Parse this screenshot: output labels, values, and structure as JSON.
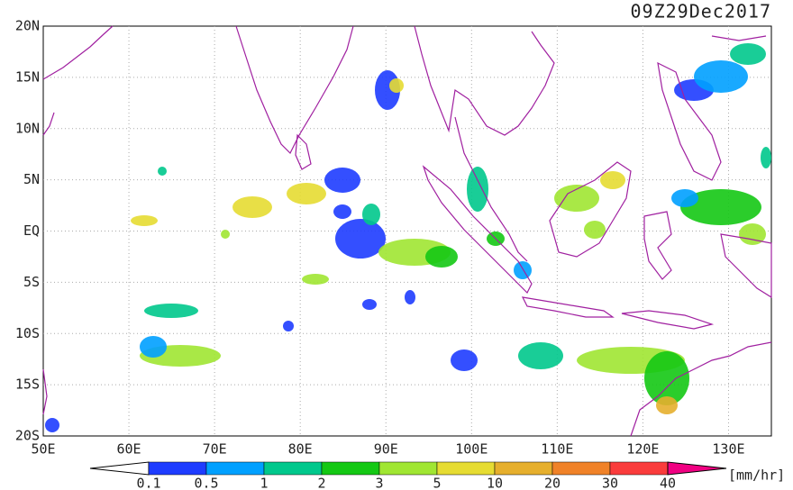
{
  "header": {
    "timestamp": "09Z29Dec2017"
  },
  "map": {
    "lat_labels": [
      "20N",
      "15N",
      "10N",
      "5N",
      "EQ",
      "5S",
      "10S",
      "15S",
      "20S"
    ],
    "lon_labels": [
      "50E",
      "60E",
      "70E",
      "80E",
      "90E",
      "100E",
      "110E",
      "120E",
      "130E"
    ],
    "coastline_color": "#a020a0"
  },
  "colorbar": {
    "labels": [
      "0.1",
      "0.5",
      "1",
      "2",
      "3",
      "5",
      "10",
      "20",
      "30",
      "40"
    ],
    "unit": "[mm/hr]",
    "colors": [
      "#ffffff",
      "#1e3cff",
      "#00a0ff",
      "#00c88c",
      "#14c814",
      "#a0e632",
      "#e6dc32",
      "#e6af2d",
      "#f08228",
      "#fa3c3c",
      "#f00082"
    ]
  }
}
